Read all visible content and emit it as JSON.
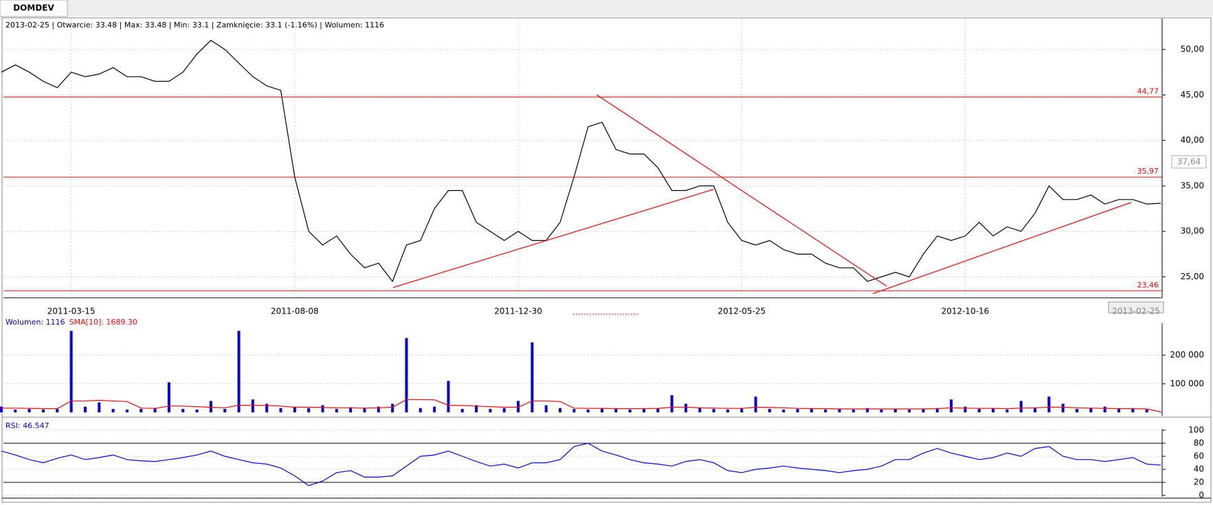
{
  "tab": "DOMDEV",
  "info": "2013-02-25 | Otwarcie: 33.48 | Max: 33.48 | Min: 33.1 | Zamknięcie: 33.1 (-1.16%)  | Wolumen: 1116",
  "chart_data": [
    {
      "type": "line",
      "categories": [
        null,
        null,
        null,
        null,
        null,
        "2011-03-15",
        null,
        null,
        null,
        null,
        null,
        null,
        null,
        null,
        null,
        null,
        null,
        null,
        null,
        null,
        null,
        "2011-08-08",
        null,
        null,
        null,
        null,
        null,
        null,
        null,
        null,
        null,
        null,
        null,
        null,
        null,
        null,
        null,
        "2011-12-30",
        null,
        null,
        null,
        null,
        null,
        null,
        null,
        null,
        null,
        null,
        null,
        null,
        null,
        null,
        null,
        "2012-05-25",
        null,
        null,
        null,
        null,
        null,
        null,
        null,
        null,
        null,
        null,
        null,
        null,
        null,
        null,
        null,
        "2012-10-16",
        null,
        null,
        null,
        null,
        null,
        null,
        null,
        null,
        null,
        null,
        null,
        null,
        null,
        "2013-02-25"
      ],
      "series": [
        {
          "color": "#000000",
          "values": [
            47.5,
            48.3,
            47.5,
            46.5,
            45.8,
            47.5,
            47,
            47.3,
            48,
            47,
            47,
            46.5,
            46.5,
            47.5,
            49.5,
            51,
            50,
            48.5,
            47,
            46,
            45.5,
            36,
            30,
            28.5,
            29.5,
            27.5,
            26,
            26.5,
            24.5,
            28.5,
            29,
            32.5,
            34.5,
            34.5,
            31,
            30,
            29,
            30,
            29,
            29,
            31,
            36,
            41.5,
            42,
            39,
            38.5,
            38.5,
            37,
            34.5,
            34.5,
            35,
            35,
            31,
            29,
            28.5,
            29,
            28,
            27.5,
            27.5,
            26.5,
            26,
            26,
            24.5,
            25,
            25.5,
            25,
            27.5,
            29.5,
            29,
            29.5,
            31,
            29.5,
            30.5,
            30,
            32,
            35,
            33.5,
            33.5,
            34,
            33,
            33.5,
            33.5,
            33,
            33.1
          ]
        }
      ],
      "hlines": [
        {
          "value": 44.77,
          "label": "44,77"
        },
        {
          "value": 35.97,
          "label": "35,97"
        },
        {
          "value": 23.46,
          "label": "23,46"
        }
      ],
      "hline_color": "#ff0000",
      "cursor_label": {
        "value": 37.64,
        "label": "37,64"
      },
      "ylim": [
        22.7,
        53.4
      ],
      "yticks": [
        {
          "value": 25,
          "label": "25,00"
        },
        {
          "value": 30,
          "label": "30,00"
        },
        {
          "value": 35,
          "label": "35,00"
        },
        {
          "value": 40,
          "label": "40,00"
        },
        {
          "value": 45,
          "label": "45,00"
        },
        {
          "value": 50,
          "label": "50,00"
        }
      ],
      "grid": true
    },
    {
      "type": "bar",
      "series": [
        {
          "name": "Wolumen: 1116",
          "color": "#0000dd",
          "values": [
            20000,
            10000,
            12000,
            10000,
            12000,
            285000,
            20000,
            35000,
            12000,
            10000,
            12000,
            15000,
            105000,
            12000,
            10000,
            40000,
            12000,
            285000,
            45000,
            30000,
            15000,
            20000,
            15000,
            25000,
            12000,
            18000,
            15000,
            20000,
            30000,
            260000,
            15000,
            20000,
            110000,
            12000,
            25000,
            12000,
            15000,
            40000,
            245000,
            25000,
            15000,
            12000,
            10000,
            15000,
            12000,
            10000,
            12000,
            15000,
            60000,
            30000,
            15000,
            12000,
            10000,
            15000,
            55000,
            12000,
            10000,
            12000,
            15000,
            10000,
            12000,
            10000,
            15000,
            10000,
            12000,
            10000,
            12000,
            15000,
            45000,
            20000,
            12000,
            15000,
            10000,
            40000,
            15000,
            55000,
            30000,
            12000,
            15000,
            20000,
            12000,
            15000,
            10000,
            1116
          ]
        },
        {
          "name": "SMA[10]: 1689.30",
          "color": "#ff0000",
          "values": [
            15000,
            15000,
            14000,
            13000,
            13000,
            40000,
            40000,
            42000,
            40000,
            38000,
            15000,
            14000,
            22000,
            22000,
            20000,
            18000,
            16000,
            25000,
            25000,
            24000,
            22000,
            18000,
            18000,
            17000,
            16000,
            16000,
            15000,
            16000,
            18000,
            45000,
            45000,
            44000,
            25000,
            24000,
            22000,
            20000,
            18000,
            18000,
            40000,
            40000,
            38000,
            15000,
            14000,
            14000,
            13000,
            13000,
            13000,
            14000,
            18000,
            18000,
            16000,
            15000,
            14000,
            14000,
            18000,
            17000,
            16000,
            14000,
            13000,
            13000,
            12000,
            12000,
            12000,
            12000,
            12000,
            12000,
            12000,
            13000,
            16000,
            15000,
            14000,
            14000,
            13000,
            15000,
            16000,
            18000,
            18000,
            16000,
            15000,
            14000,
            13000,
            13000,
            12000,
            1689.3
          ]
        }
      ],
      "ylim": [
        0,
        300000
      ],
      "yticks": [
        {
          "value": 100000,
          "label": "100 000"
        },
        {
          "value": 200000,
          "label": "200 000"
        }
      ],
      "grid": true
    },
    {
      "type": "line",
      "series": [
        {
          "name": "RSI: 46.547",
          "color": "#0000ff",
          "values": [
            68,
            62,
            55,
            50,
            57,
            62,
            55,
            58,
            62,
            55,
            53,
            52,
            55,
            58,
            62,
            68,
            60,
            55,
            50,
            48,
            42,
            30,
            15,
            22,
            35,
            38,
            28,
            28,
            30,
            45,
            60,
            62,
            68,
            60,
            52,
            45,
            48,
            42,
            50,
            50,
            55,
            75,
            80,
            68,
            62,
            55,
            50,
            48,
            45,
            52,
            55,
            50,
            38,
            35,
            40,
            42,
            45,
            42,
            40,
            38,
            35,
            38,
            40,
            45,
            55,
            55,
            65,
            72,
            65,
            60,
            55,
            58,
            65,
            60,
            72,
            75,
            60,
            55,
            55,
            52,
            55,
            58,
            48,
            46.547
          ]
        }
      ],
      "hlines": [
        {
          "value": 20
        },
        {
          "value": 80
        }
      ],
      "hline_color": "#000000",
      "ylim": [
        0,
        100
      ],
      "yticks": [
        0,
        20,
        40,
        60,
        80,
        100
      ],
      "grid": true
    }
  ]
}
